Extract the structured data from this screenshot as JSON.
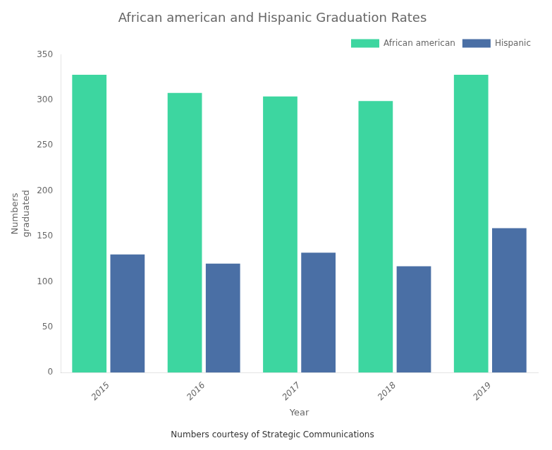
{
  "chart_data": {
    "type": "bar",
    "title": "African american and Hispanic Graduation Rates",
    "xlabel": "Year",
    "ylabel": "Numbers\ngraduated",
    "caption": "Numbers courtesy of Strategic Communications",
    "categories": [
      "2015",
      "2016",
      "2017",
      "2018",
      "2019"
    ],
    "series": [
      {
        "name": "African american",
        "color": "#3DD6A0",
        "values": [
          328,
          308,
          304,
          299,
          328
        ]
      },
      {
        "name": "Hispanic",
        "color": "#4a6fa5",
        "values": [
          130,
          120,
          132,
          117,
          159
        ]
      }
    ],
    "ylim": [
      0,
      350
    ],
    "yticks": [
      0,
      50,
      100,
      150,
      200,
      250,
      300,
      350
    ],
    "grid": false,
    "legend": "upper right"
  }
}
